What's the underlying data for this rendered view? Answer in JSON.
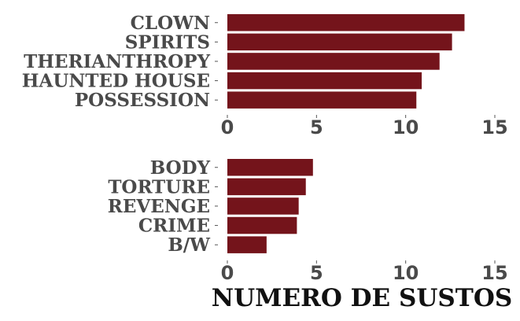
{
  "chart_data": [
    {
      "type": "bar",
      "orientation": "horizontal",
      "categories": [
        "CLOWN",
        "SPIRITS",
        "THERIANTHROPY",
        "HAUNTED HOUSE",
        "POSSESSION"
      ],
      "values": [
        13.3,
        12.6,
        11.9,
        10.9,
        10.6
      ],
      "xlim": [
        0,
        15
      ],
      "xticks": [
        0,
        5,
        10,
        15
      ],
      "xlabel": "",
      "grid": false,
      "bar_color": "#74141b"
    },
    {
      "type": "bar",
      "orientation": "horizontal",
      "categories": [
        "BODY",
        "TORTURE",
        "REVENGE",
        "CRIME",
        "B/W"
      ],
      "values": [
        4.8,
        4.4,
        4.0,
        3.9,
        2.2
      ],
      "xlim": [
        0,
        15
      ],
      "xticks": [
        0,
        5,
        10,
        15
      ],
      "xlabel": "NUMERO DE SUSTOS",
      "grid": false,
      "bar_color": "#74141b"
    }
  ]
}
